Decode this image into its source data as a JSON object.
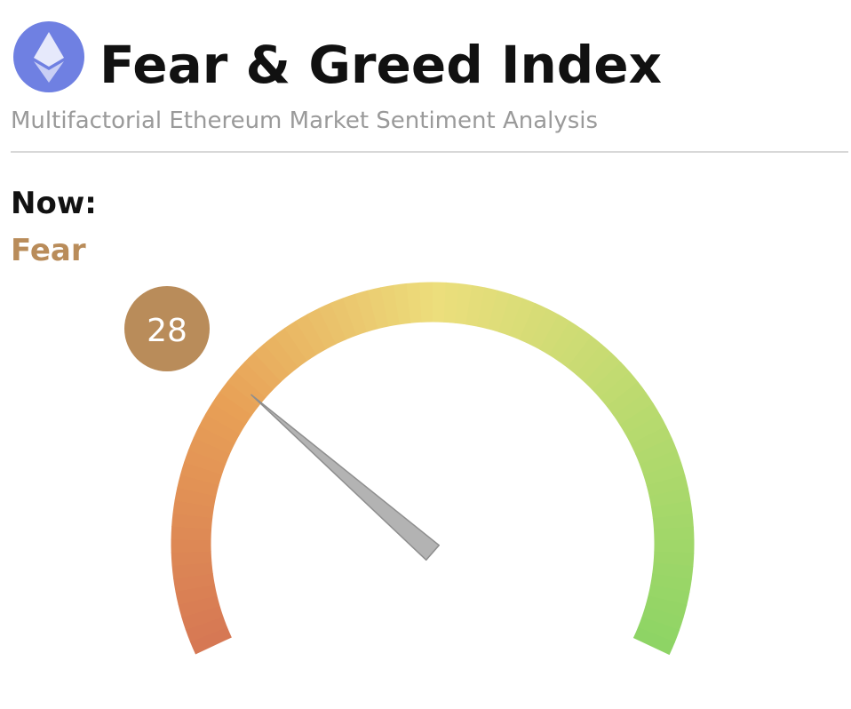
{
  "header": {
    "title": "Fear & Greed Index",
    "subtitle": "Multifactorial Ethereum Market Sentiment Analysis"
  },
  "now": {
    "label": "Now:",
    "state": "Fear"
  },
  "chart_data": {
    "type": "gauge",
    "value": 28,
    "ylim": [
      0,
      100
    ],
    "color": "#b98c5a"
  }
}
